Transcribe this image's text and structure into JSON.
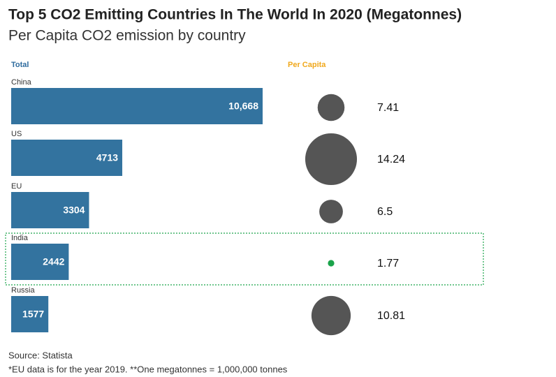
{
  "title": "Top 5 CO2 Emitting Countries In The World In 2020 (Megatonnes)",
  "subtitle": "Per Capita CO2 emission by country",
  "source": "Source: Statista",
  "note": "*EU data is for the year 2019. **One megatonnes = 1,000,000 tonnes",
  "chart_data": [
    {
      "type": "bar",
      "orientation": "horizontal",
      "title": "Total",
      "title_color": "#2e6b9e",
      "categories": [
        "China",
        "US",
        "EU",
        "India",
        "Russia"
      ],
      "values": [
        10668,
        4713,
        3304,
        2442,
        1577
      ],
      "value_labels": [
        "10,668",
        "4713",
        "3304",
        "2442",
        "1577"
      ],
      "color": "#33739f",
      "xlim": [
        0,
        10668
      ]
    },
    {
      "type": "bubble",
      "title": "Per Capita",
      "title_color": "#f0a81c",
      "categories": [
        "China",
        "US",
        "EU",
        "India",
        "Russia"
      ],
      "values": [
        7.41,
        14.24,
        6.5,
        1.77,
        10.81
      ],
      "colors": [
        "#555555",
        "#555555",
        "#555555",
        "#1aa34a",
        "#555555"
      ]
    }
  ]
}
